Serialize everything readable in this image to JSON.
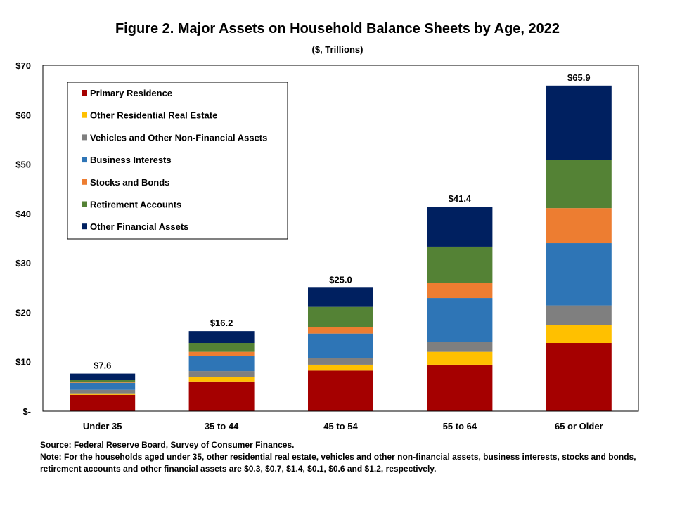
{
  "chart_data": {
    "type": "bar",
    "stacked": true,
    "title": "Figure 2. Major Assets on Household Balance Sheets by Age, 2022",
    "subtitle": "($, Trillions)",
    "categories": [
      "Under 35",
      "35 to 44",
      "45 to 54",
      "55 to 64",
      "65 or Older"
    ],
    "ylim": [
      0,
      70
    ],
    "yticks": [
      {
        "value": 0,
        "label": "$-"
      },
      {
        "value": 10,
        "label": "$10"
      },
      {
        "value": 20,
        "label": "$20"
      },
      {
        "value": 30,
        "label": "$30"
      },
      {
        "value": 40,
        "label": "$40"
      },
      {
        "value": 50,
        "label": "$50"
      },
      {
        "value": 60,
        "label": "$60"
      },
      {
        "value": 70,
        "label": "$70"
      }
    ],
    "grid": false,
    "legend_position": "top-left",
    "series": [
      {
        "name": "Primary Residence",
        "color": "#a50000",
        "values": [
          3.3,
          6.0,
          8.2,
          9.4,
          13.8
        ]
      },
      {
        "name": "Other Residential Real Estate",
        "color": "#ffc000",
        "values": [
          0.3,
          0.9,
          1.2,
          2.6,
          3.6
        ]
      },
      {
        "name": "Vehicles and Other Non-Financial Assets",
        "color": "#7f7f7f",
        "values": [
          0.7,
          1.2,
          1.4,
          2.0,
          4.0
        ]
      },
      {
        "name": "Business Interests",
        "color": "#2e75b6",
        "values": [
          1.4,
          3.0,
          4.9,
          8.9,
          12.6
        ]
      },
      {
        "name": "Stocks and Bonds",
        "color": "#ed7d31",
        "values": [
          0.1,
          0.9,
          1.3,
          3.0,
          7.1
        ]
      },
      {
        "name": "Retirement Accounts",
        "color": "#548235",
        "values": [
          0.6,
          1.8,
          4.1,
          7.4,
          9.7
        ]
      },
      {
        "name": "Other Financial Assets",
        "color": "#002060",
        "values": [
          1.2,
          2.4,
          3.9,
          8.1,
          15.1
        ]
      }
    ],
    "totals": [
      7.6,
      16.2,
      25.0,
      41.4,
      65.9
    ],
    "total_labels": [
      "$7.6",
      "$16.2",
      "$25.0",
      "$41.4",
      "$65.9"
    ]
  },
  "notes": {
    "source": "Source: Federal Reserve Board, Survey of Consumer Finances.",
    "note": "Note: For the households aged under 35,  other residential real estate, vehicles and other non-financial assets, business interests, stocks and bonds, retirement accounts and other financial assets are $0.3, $0.7, $1.4, $0.1, $0.6 and $1.2,  respectively."
  }
}
